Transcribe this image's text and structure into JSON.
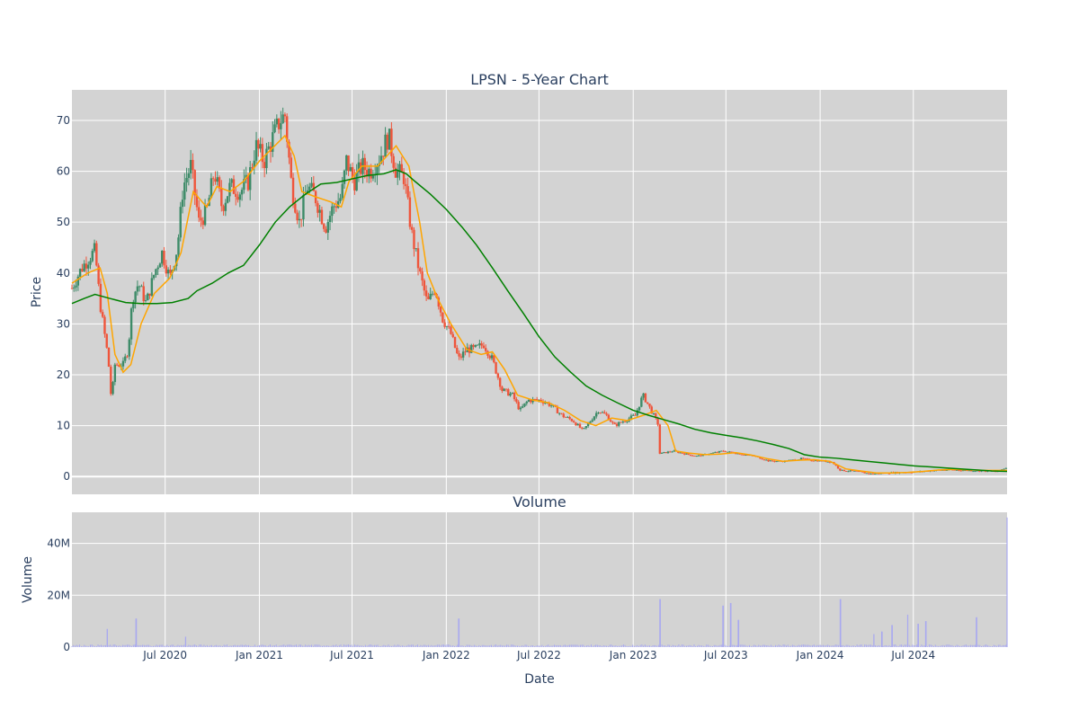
{
  "chart_data": [
    {
      "type": "candlestick",
      "title": "LPSN - 5-Year Chart",
      "ylabel": "Price",
      "ylim": [
        -3.5,
        76
      ],
      "yticks": [
        "0",
        "10",
        "20",
        "30",
        "40",
        "50",
        "60",
        "70"
      ],
      "xlim": [
        "2020-01-01",
        "2024-12-31"
      ],
      "grid": true,
      "legend": "none",
      "colors": {
        "up": "#3d8b68",
        "down": "#ef553b",
        "ma_short": "#ffa500",
        "ma_long": "#008000",
        "plot_background": "#d3d3d3",
        "grid": "#ffffff"
      },
      "price_path": [
        [
          "2020-01-01",
          37
        ],
        [
          "2020-01-20",
          41
        ],
        [
          "2020-02-15",
          44.5
        ],
        [
          "2020-02-25",
          34
        ],
        [
          "2020-03-12",
          23
        ],
        [
          "2020-03-18",
          15
        ],
        [
          "2020-03-25",
          22
        ],
        [
          "2020-04-10",
          22
        ],
        [
          "2020-04-20",
          25
        ],
        [
          "2020-04-28",
          35
        ],
        [
          "2020-05-10",
          38
        ],
        [
          "2020-05-25",
          34
        ],
        [
          "2020-06-10",
          40
        ],
        [
          "2020-06-25",
          44
        ],
        [
          "2020-07-10",
          39
        ],
        [
          "2020-07-25",
          45
        ],
        [
          "2020-08-05",
          57
        ],
        [
          "2020-08-20",
          61
        ],
        [
          "2020-09-05",
          50
        ],
        [
          "2020-09-20",
          52
        ],
        [
          "2020-10-05",
          60
        ],
        [
          "2020-10-20",
          53
        ],
        [
          "2020-11-05",
          57
        ],
        [
          "2020-11-25",
          56
        ],
        [
          "2020-12-10",
          58
        ],
        [
          "2020-12-25",
          65
        ],
        [
          "2021-01-10",
          62
        ],
        [
          "2021-01-25",
          66
        ],
        [
          "2021-02-10",
          70
        ],
        [
          "2021-02-20",
          71
        ],
        [
          "2021-03-05",
          57
        ],
        [
          "2021-03-20",
          50
        ],
        [
          "2021-04-05",
          57
        ],
        [
          "2021-04-20",
          55
        ],
        [
          "2021-05-10",
          49
        ],
        [
          "2021-05-25",
          53
        ],
        [
          "2021-06-10",
          55
        ],
        [
          "2021-06-20",
          62
        ],
        [
          "2021-07-05",
          58
        ],
        [
          "2021-07-20",
          61
        ],
        [
          "2021-08-05",
          60
        ],
        [
          "2021-08-25",
          63
        ],
        [
          "2021-09-10",
          67
        ],
        [
          "2021-09-25",
          60
        ],
        [
          "2021-10-10",
          59
        ],
        [
          "2021-10-25",
          48
        ],
        [
          "2021-11-10",
          40
        ],
        [
          "2021-11-25",
          34
        ],
        [
          "2021-12-10",
          37
        ],
        [
          "2021-12-25",
          31
        ],
        [
          "2022-01-10",
          28
        ],
        [
          "2022-01-25",
          23
        ],
        [
          "2022-02-10",
          25
        ],
        [
          "2022-02-25",
          25
        ],
        [
          "2022-03-15",
          26
        ],
        [
          "2022-04-01",
          23
        ],
        [
          "2022-04-20",
          17
        ],
        [
          "2022-05-10",
          16
        ],
        [
          "2022-05-25",
          13
        ],
        [
          "2022-06-10",
          15
        ],
        [
          "2022-07-05",
          15
        ],
        [
          "2022-07-25",
          14
        ],
        [
          "2022-08-15",
          12
        ],
        [
          "2022-09-05",
          11
        ],
        [
          "2022-09-25",
          9
        ],
        [
          "2022-10-10",
          11
        ],
        [
          "2022-10-25",
          13
        ],
        [
          "2022-11-10",
          12
        ],
        [
          "2022-11-25",
          10
        ],
        [
          "2022-12-15",
          11
        ],
        [
          "2023-01-05",
          12
        ],
        [
          "2023-01-20",
          16
        ],
        [
          "2023-02-05",
          13
        ],
        [
          "2023-02-20",
          10
        ],
        [
          "2023-02-22",
          4.5
        ],
        [
          "2023-03-20",
          5
        ],
        [
          "2023-04-10",
          4.5
        ],
        [
          "2023-05-05",
          4
        ],
        [
          "2023-06-01",
          4.5
        ],
        [
          "2023-06-25",
          5
        ],
        [
          "2023-07-25",
          4.5
        ],
        [
          "2023-08-25",
          4
        ],
        [
          "2023-09-25",
          3
        ],
        [
          "2023-10-25",
          3
        ],
        [
          "2023-11-25",
          3.5
        ],
        [
          "2023-12-15",
          3.2
        ],
        [
          "2024-01-10",
          3
        ],
        [
          "2024-01-25",
          2.8
        ],
        [
          "2024-02-10",
          1.2
        ],
        [
          "2024-03-10",
          1
        ],
        [
          "2024-04-10",
          0.5
        ],
        [
          "2024-05-10",
          0.7
        ],
        [
          "2024-06-10",
          0.8
        ],
        [
          "2024-07-10",
          0.9
        ],
        [
          "2024-08-10",
          1.2
        ],
        [
          "2024-09-10",
          1.3
        ],
        [
          "2024-10-10",
          1.2
        ],
        [
          "2024-11-10",
          1.1
        ],
        [
          "2024-12-10",
          1
        ],
        [
          "2024-12-31",
          1.8
        ]
      ],
      "ma_short_path": [
        [
          "2020-01-01",
          38
        ],
        [
          "2020-02-01",
          40
        ],
        [
          "2020-02-25",
          41
        ],
        [
          "2020-03-10",
          36
        ],
        [
          "2020-03-25",
          24
        ],
        [
          "2020-04-10",
          20.5
        ],
        [
          "2020-04-25",
          22
        ],
        [
          "2020-05-15",
          30
        ],
        [
          "2020-06-10",
          36
        ],
        [
          "2020-07-10",
          39
        ],
        [
          "2020-08-01",
          44
        ],
        [
          "2020-08-25",
          56
        ],
        [
          "2020-09-20",
          53
        ],
        [
          "2020-10-10",
          57
        ],
        [
          "2020-11-05",
          56
        ],
        [
          "2020-12-01",
          58
        ],
        [
          "2021-01-01",
          62
        ],
        [
          "2021-02-20",
          67
        ],
        [
          "2021-03-10",
          63
        ],
        [
          "2021-03-25",
          56
        ],
        [
          "2021-04-20",
          55
        ],
        [
          "2021-05-20",
          54
        ],
        [
          "2021-06-10",
          53
        ],
        [
          "2021-06-25",
          58
        ],
        [
          "2021-07-20",
          61
        ],
        [
          "2021-08-20",
          61
        ],
        [
          "2021-09-25",
          65
        ],
        [
          "2021-10-20",
          61
        ],
        [
          "2021-11-10",
          50
        ],
        [
          "2021-11-25",
          40
        ],
        [
          "2021-12-15",
          35
        ],
        [
          "2022-01-10",
          30
        ],
        [
          "2022-02-10",
          25
        ],
        [
          "2022-03-10",
          24
        ],
        [
          "2022-04-01",
          24.5
        ],
        [
          "2022-04-25",
          21
        ],
        [
          "2022-05-20",
          16
        ],
        [
          "2022-06-20",
          15
        ],
        [
          "2022-07-20",
          14.5
        ],
        [
          "2022-08-20",
          13
        ],
        [
          "2022-09-20",
          11
        ],
        [
          "2022-10-20",
          10
        ],
        [
          "2022-11-20",
          11.5
        ],
        [
          "2022-12-20",
          11
        ],
        [
          "2023-01-20",
          12
        ],
        [
          "2023-02-15",
          13
        ],
        [
          "2023-03-10",
          10
        ],
        [
          "2023-03-25",
          5
        ],
        [
          "2023-04-20",
          4.6
        ],
        [
          "2023-05-20",
          4.3
        ],
        [
          "2023-06-20",
          4.4
        ],
        [
          "2023-07-20",
          4.7
        ],
        [
          "2023-08-20",
          4.2
        ],
        [
          "2023-09-20",
          3.5
        ],
        [
          "2023-10-20",
          3
        ],
        [
          "2023-11-20",
          3.2
        ],
        [
          "2023-12-20",
          3.3
        ],
        [
          "2024-01-20",
          3
        ],
        [
          "2024-02-20",
          1.5
        ],
        [
          "2024-03-20",
          1.1
        ],
        [
          "2024-04-20",
          0.7
        ],
        [
          "2024-05-20",
          0.7
        ],
        [
          "2024-06-20",
          0.8
        ],
        [
          "2024-07-20",
          1
        ],
        [
          "2024-08-20",
          1.3
        ],
        [
          "2024-09-20",
          1.4
        ],
        [
          "2024-10-20",
          1.3
        ],
        [
          "2024-11-20",
          1.2
        ],
        [
          "2024-12-31",
          1.2
        ]
      ],
      "ma_long_path": [
        [
          "2020-01-01",
          34
        ],
        [
          "2020-01-25",
          35
        ],
        [
          "2020-02-15",
          35.8
        ],
        [
          "2020-03-15",
          35
        ],
        [
          "2020-04-15",
          34.2
        ],
        [
          "2020-05-15",
          34
        ],
        [
          "2020-06-15",
          34
        ],
        [
          "2020-07-15",
          34.2
        ],
        [
          "2020-08-15",
          35
        ],
        [
          "2020-09-01",
          36.5
        ],
        [
          "2020-10-01",
          38
        ],
        [
          "2020-11-01",
          40
        ],
        [
          "2020-12-01",
          41.5
        ],
        [
          "2021-01-01",
          45.5
        ],
        [
          "2021-02-01",
          50
        ],
        [
          "2021-03-01",
          53
        ],
        [
          "2021-04-01",
          55.5
        ],
        [
          "2021-05-01",
          57.5
        ],
        [
          "2021-06-01",
          57.8
        ],
        [
          "2021-07-01",
          58.5
        ],
        [
          "2021-08-01",
          59.2
        ],
        [
          "2021-09-01",
          59.5
        ],
        [
          "2021-09-25",
          60.3
        ],
        [
          "2021-10-15",
          59.5
        ],
        [
          "2021-11-01",
          58
        ],
        [
          "2021-12-01",
          55.5
        ],
        [
          "2022-01-01",
          52.5
        ],
        [
          "2022-02-01",
          49
        ],
        [
          "2022-03-01",
          45.5
        ],
        [
          "2022-04-01",
          41
        ],
        [
          "2022-05-01",
          36.5
        ],
        [
          "2022-06-01",
          32
        ],
        [
          "2022-07-01",
          27.5
        ],
        [
          "2022-08-01",
          23.5
        ],
        [
          "2022-09-01",
          20.5
        ],
        [
          "2022-10-01",
          17.8
        ],
        [
          "2022-11-01",
          16
        ],
        [
          "2022-12-01",
          14.5
        ],
        [
          "2023-01-01",
          13
        ],
        [
          "2023-02-01",
          12
        ],
        [
          "2023-03-01",
          11.2
        ],
        [
          "2023-04-01",
          10.3
        ],
        [
          "2023-05-01",
          9.3
        ],
        [
          "2023-06-01",
          8.6
        ],
        [
          "2023-07-01",
          8.1
        ],
        [
          "2023-08-01",
          7.6
        ],
        [
          "2023-09-01",
          7
        ],
        [
          "2023-10-01",
          6.3
        ],
        [
          "2023-11-01",
          5.5
        ],
        [
          "2023-12-01",
          4.3
        ],
        [
          "2024-01-01",
          3.8
        ],
        [
          "2024-02-01",
          3.6
        ],
        [
          "2024-03-01",
          3.3
        ],
        [
          "2024-04-01",
          3
        ],
        [
          "2024-05-01",
          2.7
        ],
        [
          "2024-06-01",
          2.4
        ],
        [
          "2024-07-01",
          2.1
        ],
        [
          "2024-08-01",
          1.9
        ],
        [
          "2024-09-01",
          1.7
        ],
        [
          "2024-10-01",
          1.5
        ],
        [
          "2024-11-01",
          1.3
        ],
        [
          "2024-12-01",
          1.1
        ],
        [
          "2024-12-31",
          1
        ]
      ]
    },
    {
      "type": "bar",
      "title": "Volume",
      "xlabel": "Date",
      "ylabel": "Volume",
      "ylim": [
        0,
        52000000
      ],
      "yticks": [
        "0",
        "20M",
        "40M"
      ],
      "xticks": [
        "Jul 2020",
        "Jan 2021",
        "Jul 2021",
        "Jan 2022",
        "Jul 2022",
        "Jan 2023",
        "Jul 2023",
        "Jan 2024",
        "Jul 2024"
      ],
      "grid": true,
      "bar_color": "#a9a9f0",
      "baseline_volume": 700000,
      "volume_spikes": [
        [
          "2020-03-10",
          7000000
        ],
        [
          "2020-05-05",
          11000000
        ],
        [
          "2020-08-10",
          4000000
        ],
        [
          "2022-01-25",
          11000000
        ],
        [
          "2023-02-22",
          18500000
        ],
        [
          "2023-06-25",
          16000000
        ],
        [
          "2023-07-10",
          17000000
        ],
        [
          "2023-07-25",
          10500000
        ],
        [
          "2024-02-10",
          18500000
        ],
        [
          "2024-04-15",
          5000000
        ],
        [
          "2024-05-01",
          6000000
        ],
        [
          "2024-05-20",
          8500000
        ],
        [
          "2024-06-20",
          12500000
        ],
        [
          "2024-07-10",
          9000000
        ],
        [
          "2024-07-25",
          10000000
        ],
        [
          "2024-11-01",
          11500000
        ],
        [
          "2024-12-31",
          50000000
        ]
      ]
    }
  ]
}
